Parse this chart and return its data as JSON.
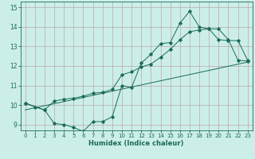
{
  "xlabel": "Humidex (Indice chaleur)",
  "bg_color": "#cceee8",
  "grid_color": "#b8a8a8",
  "line_color": "#1a6b5a",
  "xlim": [
    -0.5,
    23.5
  ],
  "ylim": [
    8.7,
    15.3
  ],
  "xticks": [
    0,
    1,
    2,
    3,
    4,
    5,
    6,
    7,
    8,
    9,
    10,
    11,
    12,
    13,
    14,
    15,
    16,
    17,
    18,
    19,
    20,
    21,
    22,
    23
  ],
  "yticks": [
    9,
    10,
    11,
    12,
    13,
    14,
    15
  ],
  "series1_x": [
    0,
    1,
    2,
    3,
    4,
    5,
    6,
    7,
    8,
    9,
    10,
    11,
    12,
    13,
    14,
    15,
    16,
    17,
    18,
    19,
    20,
    21,
    22,
    23
  ],
  "series1_y": [
    10.1,
    9.9,
    9.75,
    9.05,
    9.0,
    8.85,
    8.65,
    9.15,
    9.15,
    9.4,
    11.0,
    10.9,
    12.15,
    12.6,
    13.15,
    13.2,
    14.2,
    14.8,
    14.0,
    13.9,
    13.35,
    13.3,
    13.3,
    12.3
  ],
  "series2_x": [
    0,
    2,
    3,
    4,
    5,
    6,
    7,
    8,
    9,
    10,
    11,
    12,
    13,
    14,
    15,
    16,
    17,
    18,
    19,
    20,
    21,
    22,
    23
  ],
  "series2_y": [
    10.1,
    9.75,
    10.2,
    10.3,
    10.35,
    10.45,
    10.6,
    10.65,
    10.8,
    11.55,
    11.7,
    11.95,
    12.1,
    12.45,
    12.85,
    13.35,
    13.75,
    13.85,
    13.9,
    13.9,
    13.35,
    12.3,
    12.25
  ],
  "series3_x": [
    0,
    23
  ],
  "series3_y": [
    9.75,
    12.2
  ]
}
